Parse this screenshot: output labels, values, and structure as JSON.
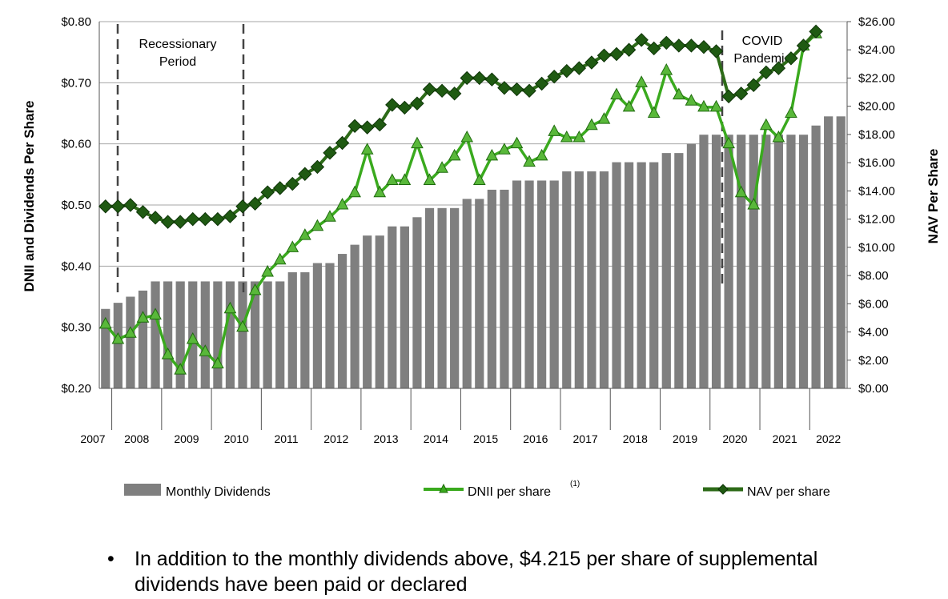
{
  "chart_data": {
    "type": "bar+line",
    "left_axis_title": "DNII and Dividends Per Share",
    "right_axis_title": "NAV Per Share",
    "left_ticks": [
      "$0.20",
      "$0.30",
      "$0.40",
      "$0.50",
      "$0.60",
      "$0.70",
      "$0.80"
    ],
    "right_ticks": [
      "$0.00",
      "$2.00",
      "$4.00",
      "$6.00",
      "$8.00",
      "$10.00",
      "$12.00",
      "$14.00",
      "$16.00",
      "$18.00",
      "$20.00",
      "$22.00",
      "$24.00",
      "$26.00"
    ],
    "left_ylim": [
      0.2,
      0.8
    ],
    "right_ylim": [
      0,
      26
    ],
    "year_labels": [
      "2007",
      "2008",
      "2009",
      "2010",
      "2011",
      "2012",
      "2013",
      "2014",
      "2015",
      "2016",
      "2017",
      "2018",
      "2019",
      "2020",
      "2021",
      "2022"
    ],
    "annotations": {
      "recession": [
        "Recessionary",
        "Period"
      ],
      "covid": [
        "COVID",
        "Pandemic"
      ]
    },
    "legend": {
      "dividends": "Monthly Dividends",
      "dnii": "DNII per share",
      "dnii_note": "(1)",
      "nav": "NAV per share"
    },
    "series": [
      {
        "name": "Monthly Dividends",
        "kind": "bar",
        "axis": "left",
        "color": "#7f7f7f",
        "values": [
          0.33,
          0.34,
          0.35,
          0.36,
          0.375,
          0.375,
          0.375,
          0.375,
          0.375,
          0.375,
          0.375,
          0.375,
          0.375,
          0.375,
          0.375,
          0.39,
          0.39,
          0.405,
          0.405,
          0.42,
          0.435,
          0.45,
          0.45,
          0.465,
          0.465,
          0.48,
          0.495,
          0.495,
          0.495,
          0.51,
          0.51,
          0.525,
          0.525,
          0.54,
          0.54,
          0.54,
          0.54,
          0.555,
          0.555,
          0.555,
          0.555,
          0.57,
          0.57,
          0.57,
          0.57,
          0.585,
          0.585,
          0.6,
          0.615,
          0.615,
          0.615,
          0.615,
          0.615,
          0.615,
          0.615,
          0.615,
          0.615,
          0.63,
          0.645,
          0.645
        ]
      },
      {
        "name": "DNII per share",
        "kind": "line",
        "axis": "left",
        "color": "#3aaa1e",
        "values": [
          0.305,
          0.28,
          0.29,
          0.315,
          0.32,
          0.255,
          0.23,
          0.28,
          0.26,
          0.24,
          0.33,
          0.3,
          0.36,
          0.39,
          0.41,
          0.43,
          0.45,
          0.465,
          0.48,
          0.5,
          0.52,
          0.59,
          0.52,
          0.54,
          0.54,
          0.6,
          0.54,
          0.56,
          0.58,
          0.61,
          0.54,
          0.58,
          0.59,
          0.6,
          0.57,
          0.58,
          0.62,
          0.61,
          0.61,
          0.63,
          0.64,
          0.68,
          0.66,
          0.7,
          0.65,
          0.72,
          0.68,
          0.67,
          0.66,
          0.66,
          0.6,
          0.52,
          0.5,
          0.63,
          0.61,
          0.65,
          0.76,
          0.78
        ]
      },
      {
        "name": "NAV per share",
        "kind": "line",
        "axis": "right",
        "color": "#2d6b18",
        "values": [
          12.9,
          12.9,
          13.0,
          12.5,
          12.1,
          11.8,
          11.8,
          12.0,
          12.0,
          12.0,
          12.2,
          12.9,
          13.1,
          13.9,
          14.2,
          14.5,
          15.2,
          15.7,
          16.7,
          17.4,
          18.6,
          18.5,
          18.7,
          20.1,
          19.9,
          20.2,
          21.2,
          21.1,
          20.9,
          22.0,
          22.0,
          21.9,
          21.3,
          21.2,
          21.1,
          21.6,
          22.1,
          22.5,
          22.7,
          23.1,
          23.6,
          23.7,
          24.0,
          24.7,
          24.1,
          24.5,
          24.3,
          24.3,
          24.2,
          23.9,
          20.7,
          20.9,
          21.5,
          22.4,
          22.7,
          23.4,
          24.3,
          25.3
        ]
      }
    ]
  },
  "bullet": {
    "symbol": "•",
    "text": "In addition to the monthly dividends above, $4.215 per share of supplemental dividends have been paid or declared"
  }
}
